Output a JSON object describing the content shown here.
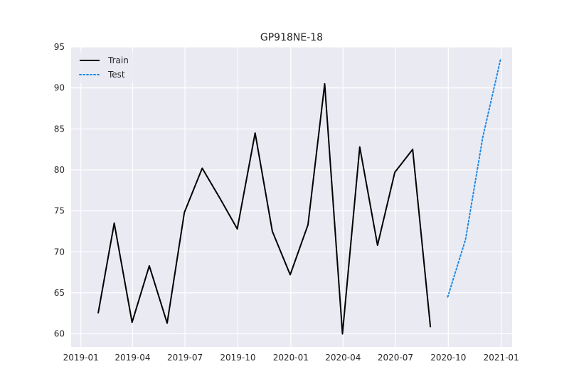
{
  "chart_data": {
    "type": "line",
    "title": "GP918NE-18",
    "xlabel": "",
    "ylabel": "",
    "x_axis_type": "date",
    "xlim": [
      "2018-12-15",
      "2021-01-20"
    ],
    "ylim": [
      58.4,
      95.0
    ],
    "x_ticks": [
      "2019-01",
      "2019-04",
      "2019-07",
      "2019-10",
      "2020-01",
      "2020-04",
      "2020-07",
      "2020-10",
      "2021-01"
    ],
    "y_ticks": [
      60,
      65,
      70,
      75,
      80,
      85,
      90,
      95
    ],
    "grid": true,
    "background": "#eaeaf2",
    "legend_position": "top-left",
    "series": [
      {
        "name": "Train",
        "style": "solid",
        "color": "#000000",
        "x": [
          "2019-01-31",
          "2019-02-28",
          "2019-03-31",
          "2019-04-30",
          "2019-05-31",
          "2019-06-30",
          "2019-07-31",
          "2019-08-31",
          "2019-09-30",
          "2019-10-31",
          "2019-11-30",
          "2019-12-31",
          "2020-01-31",
          "2020-02-29",
          "2020-03-31",
          "2020-04-30",
          "2020-05-31",
          "2020-06-30",
          "2020-07-31",
          "2020-08-31"
        ],
        "values": [
          62.5,
          73.5,
          61.4,
          68.3,
          61.3,
          74.8,
          80.2,
          76.5,
          72.8,
          84.5,
          72.5,
          67.2,
          73.3,
          90.5,
          60.0,
          82.8,
          70.8,
          79.7,
          82.5,
          60.8
        ]
      },
      {
        "name": "Test",
        "style": "dotted",
        "color": "#1e88e5",
        "x": [
          "2020-09-30",
          "2020-10-31",
          "2020-11-30",
          "2020-12-31"
        ],
        "values": [
          64.5,
          71.5,
          84.0,
          93.5
        ]
      }
    ]
  }
}
